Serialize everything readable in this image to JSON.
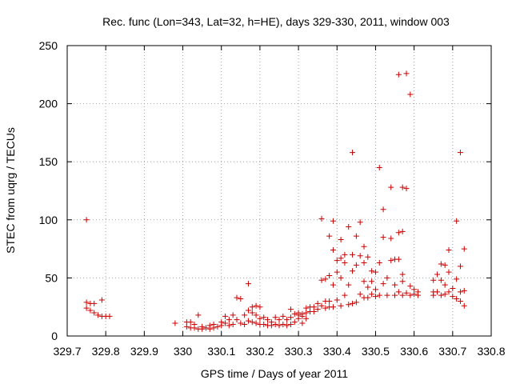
{
  "chart_data": {
    "type": "scatter",
    "title": "Rec. func (Lon=343, Lat=32, h=HE), days 329-330, 2011, window 003",
    "xlabel": "GPS time / Days of year 2011",
    "ylabel": "STEC from uqrg / TECUs",
    "xlim": [
      329.7,
      330.8
    ],
    "ylim": [
      0,
      250
    ],
    "xticks": [
      "329.7",
      "329.8",
      "329.9",
      "330",
      "330.1",
      "330.2",
      "330.3",
      "330.4",
      "330.5",
      "330.6",
      "330.7",
      "330.8"
    ],
    "yticks": [
      "0",
      "50",
      "100",
      "150",
      "200",
      "250"
    ],
    "grid": "dotted",
    "legend": "none",
    "marker": "+",
    "color": "#cc0000",
    "points": [
      [
        329.75,
        100
      ],
      [
        329.75,
        29
      ],
      [
        329.75,
        24
      ],
      [
        329.76,
        28
      ],
      [
        329.76,
        22
      ],
      [
        329.77,
        28
      ],
      [
        329.77,
        20
      ],
      [
        329.78,
        18
      ],
      [
        329.79,
        31
      ],
      [
        329.79,
        17
      ],
      [
        329.8,
        17
      ],
      [
        329.81,
        17
      ],
      [
        329.98,
        11
      ],
      [
        330.01,
        12
      ],
      [
        330.01,
        8
      ],
      [
        330.02,
        12
      ],
      [
        330.02,
        7
      ],
      [
        330.03,
        10
      ],
      [
        330.03,
        7
      ],
      [
        330.04,
        18
      ],
      [
        330.04,
        6
      ],
      [
        330.05,
        8
      ],
      [
        330.05,
        6
      ],
      [
        330.06,
        7
      ],
      [
        330.07,
        6
      ],
      [
        330.07,
        9
      ],
      [
        330.08,
        10
      ],
      [
        330.08,
        7
      ],
      [
        330.09,
        8
      ],
      [
        330.1,
        12
      ],
      [
        330.1,
        9
      ],
      [
        330.11,
        17
      ],
      [
        330.11,
        11
      ],
      [
        330.12,
        14
      ],
      [
        330.12,
        9
      ],
      [
        330.13,
        18
      ],
      [
        330.13,
        10
      ],
      [
        330.14,
        33
      ],
      [
        330.14,
        14
      ],
      [
        330.15,
        32
      ],
      [
        330.15,
        11
      ],
      [
        330.16,
        18
      ],
      [
        330.16,
        10
      ],
      [
        330.17,
        45
      ],
      [
        330.17,
        22
      ],
      [
        330.17,
        13
      ],
      [
        330.18,
        25
      ],
      [
        330.18,
        20
      ],
      [
        330.18,
        12
      ],
      [
        330.19,
        26
      ],
      [
        330.19,
        18
      ],
      [
        330.19,
        11
      ],
      [
        330.2,
        25
      ],
      [
        330.2,
        15
      ],
      [
        330.2,
        10
      ],
      [
        330.21,
        16
      ],
      [
        330.21,
        10
      ],
      [
        330.22,
        14
      ],
      [
        330.22,
        9
      ],
      [
        330.23,
        12
      ],
      [
        330.23,
        9
      ],
      [
        330.24,
        16
      ],
      [
        330.24,
        10
      ],
      [
        330.25,
        14
      ],
      [
        330.25,
        9
      ],
      [
        330.26,
        17
      ],
      [
        330.26,
        10
      ],
      [
        330.27,
        14
      ],
      [
        330.27,
        9
      ],
      [
        330.28,
        23
      ],
      [
        330.28,
        16
      ],
      [
        330.28,
        10
      ],
      [
        330.29,
        19
      ],
      [
        330.29,
        12
      ],
      [
        330.3,
        20
      ],
      [
        330.3,
        18
      ],
      [
        330.3,
        15
      ],
      [
        330.31,
        19
      ],
      [
        330.31,
        17
      ],
      [
        330.31,
        11
      ],
      [
        330.32,
        24
      ],
      [
        330.32,
        20
      ],
      [
        330.32,
        15
      ],
      [
        330.33,
        25
      ],
      [
        330.33,
        21
      ],
      [
        330.34,
        25
      ],
      [
        330.34,
        21
      ],
      [
        330.35,
        28
      ],
      [
        330.35,
        23
      ],
      [
        330.36,
        101
      ],
      [
        330.36,
        48
      ],
      [
        330.36,
        26
      ],
      [
        330.37,
        49
      ],
      [
        330.37,
        30
      ],
      [
        330.37,
        24
      ],
      [
        330.38,
        86
      ],
      [
        330.38,
        52
      ],
      [
        330.38,
        30
      ],
      [
        330.38,
        25
      ],
      [
        330.39,
        99
      ],
      [
        330.39,
        74
      ],
      [
        330.39,
        44
      ],
      [
        330.39,
        25
      ],
      [
        330.4,
        65
      ],
      [
        330.4,
        55
      ],
      [
        330.4,
        31
      ],
      [
        330.41,
        83
      ],
      [
        330.41,
        67
      ],
      [
        330.41,
        50
      ],
      [
        330.41,
        26
      ],
      [
        330.42,
        70
      ],
      [
        330.42,
        63
      ],
      [
        330.42,
        35
      ],
      [
        330.43,
        94
      ],
      [
        330.43,
        44
      ],
      [
        330.43,
        27
      ],
      [
        330.44,
        158
      ],
      [
        330.44,
        70
      ],
      [
        330.44,
        56
      ],
      [
        330.44,
        28
      ],
      [
        330.45,
        86
      ],
      [
        330.45,
        61
      ],
      [
        330.45,
        29
      ],
      [
        330.46,
        98
      ],
      [
        330.46,
        69
      ],
      [
        330.46,
        36
      ],
      [
        330.47,
        77
      ],
      [
        330.47,
        63
      ],
      [
        330.47,
        47
      ],
      [
        330.47,
        33
      ],
      [
        330.48,
        68
      ],
      [
        330.48,
        42
      ],
      [
        330.48,
        33
      ],
      [
        330.49,
        56
      ],
      [
        330.49,
        47
      ],
      [
        330.49,
        36
      ],
      [
        330.5,
        55
      ],
      [
        330.5,
        40
      ],
      [
        330.5,
        34
      ],
      [
        330.51,
        145
      ],
      [
        330.51,
        63
      ],
      [
        330.51,
        35
      ],
      [
        330.52,
        109
      ],
      [
        330.52,
        85
      ],
      [
        330.52,
        45
      ],
      [
        330.53,
        50
      ],
      [
        330.53,
        35
      ],
      [
        330.54,
        128
      ],
      [
        330.54,
        84
      ],
      [
        330.54,
        65
      ],
      [
        330.55,
        66
      ],
      [
        330.55,
        44
      ],
      [
        330.55,
        35
      ],
      [
        330.56,
        225
      ],
      [
        330.56,
        89
      ],
      [
        330.56,
        66
      ],
      [
        330.56,
        38
      ],
      [
        330.57,
        128
      ],
      [
        330.57,
        90
      ],
      [
        330.57,
        53
      ],
      [
        330.57,
        47
      ],
      [
        330.57,
        35
      ],
      [
        330.58,
        226
      ],
      [
        330.58,
        127
      ],
      [
        330.58,
        37
      ],
      [
        330.59,
        208
      ],
      [
        330.59,
        43
      ],
      [
        330.59,
        35
      ],
      [
        330.6,
        40
      ],
      [
        330.6,
        36
      ],
      [
        330.61,
        38
      ],
      [
        330.61,
        35
      ],
      [
        330.65,
        48
      ],
      [
        330.65,
        38
      ],
      [
        330.65,
        35
      ],
      [
        330.66,
        53
      ],
      [
        330.66,
        38
      ],
      [
        330.67,
        62
      ],
      [
        330.67,
        48
      ],
      [
        330.67,
        35
      ],
      [
        330.68,
        61
      ],
      [
        330.68,
        44
      ],
      [
        330.68,
        36
      ],
      [
        330.69,
        74
      ],
      [
        330.69,
        55
      ],
      [
        330.69,
        38
      ],
      [
        330.7,
        41
      ],
      [
        330.7,
        34
      ],
      [
        330.71,
        99
      ],
      [
        330.71,
        49
      ],
      [
        330.71,
        32
      ],
      [
        330.72,
        158
      ],
      [
        330.72,
        60
      ],
      [
        330.72,
        38
      ],
      [
        330.72,
        30
      ],
      [
        330.73,
        75
      ],
      [
        330.73,
        39
      ],
      [
        330.73,
        26
      ]
    ]
  }
}
